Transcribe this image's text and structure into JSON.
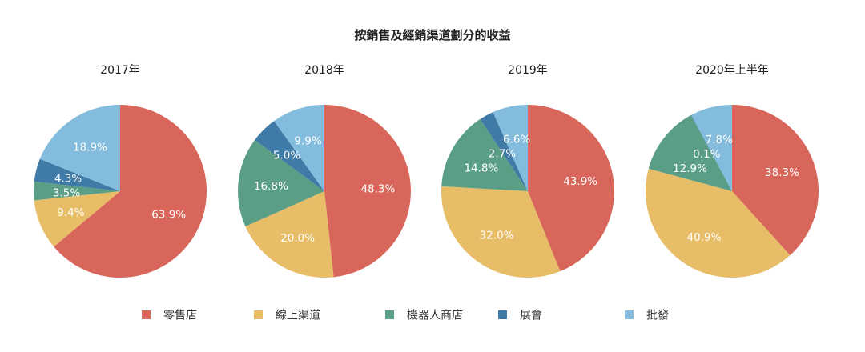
{
  "title": "按銷售及經銷渠道劃分的收益",
  "colors": {
    "retail": "#d9665a",
    "online": "#e8bd67",
    "robot": "#5a9e85",
    "exhibition": "#3f7ba6",
    "wholesale": "#83bcdc"
  },
  "legend": [
    {
      "name": "零售店",
      "color_key": "retail"
    },
    {
      "name": "線上渠道",
      "color_key": "online"
    },
    {
      "name": "機器人商店",
      "color_key": "robot"
    },
    {
      "name": "展會",
      "color_key": "exhibition"
    },
    {
      "name": "批發",
      "color_key": "wholesale"
    }
  ],
  "chart_data": [
    {
      "type": "pie",
      "title": "2017年",
      "slices": [
        {
          "name": "零售店",
          "value": 63.9,
          "label": "63.9%",
          "color_key": "retail"
        },
        {
          "name": "線上渠道",
          "value": 9.4,
          "label": "9.4%",
          "color_key": "online"
        },
        {
          "name": "機器人商店",
          "value": 3.5,
          "label": "3.5%",
          "color_key": "robot"
        },
        {
          "name": "展會",
          "value": 4.3,
          "label": "4.3%",
          "color_key": "exhibition"
        },
        {
          "name": "批發",
          "value": 18.9,
          "label": "18.9%",
          "color_key": "wholesale"
        }
      ]
    },
    {
      "type": "pie",
      "title": "2018年",
      "slices": [
        {
          "name": "零售店",
          "value": 48.3,
          "label": "48.3%",
          "color_key": "retail"
        },
        {
          "name": "線上渠道",
          "value": 20.0,
          "label": "20.0%",
          "color_key": "online"
        },
        {
          "name": "機器人商店",
          "value": 16.8,
          "label": "16.8%",
          "color_key": "robot"
        },
        {
          "name": "展會",
          "value": 5.0,
          "label": "5.0%",
          "color_key": "exhibition"
        },
        {
          "name": "批發",
          "value": 9.9,
          "label": "9.9%",
          "color_key": "wholesale"
        }
      ]
    },
    {
      "type": "pie",
      "title": "2019年",
      "slices": [
        {
          "name": "零售店",
          "value": 43.9,
          "label": "43.9%",
          "color_key": "retail"
        },
        {
          "name": "線上渠道",
          "value": 32.0,
          "label": "32.0%",
          "color_key": "online"
        },
        {
          "name": "機器人商店",
          "value": 14.8,
          "label": "14.8%",
          "color_key": "robot"
        },
        {
          "name": "展會",
          "value": 2.7,
          "label": "2.7%",
          "color_key": "exhibition"
        },
        {
          "name": "批發",
          "value": 6.6,
          "label": "6.6%",
          "color_key": "wholesale"
        }
      ]
    },
    {
      "type": "pie",
      "title": "2020年上半年",
      "slices": [
        {
          "name": "零售店",
          "value": 38.3,
          "label": "38.3%",
          "color_key": "retail"
        },
        {
          "name": "線上渠道",
          "value": 40.9,
          "label": "40.9%",
          "color_key": "online"
        },
        {
          "name": "機器人商店",
          "value": 12.9,
          "label": "12.9%",
          "color_key": "robot"
        },
        {
          "name": "展會",
          "value": 0.1,
          "label": "0.1%",
          "color_key": "exhibition"
        },
        {
          "name": "批發",
          "value": 7.8,
          "label": "7.8%",
          "color_key": "wholesale"
        }
      ]
    }
  ]
}
